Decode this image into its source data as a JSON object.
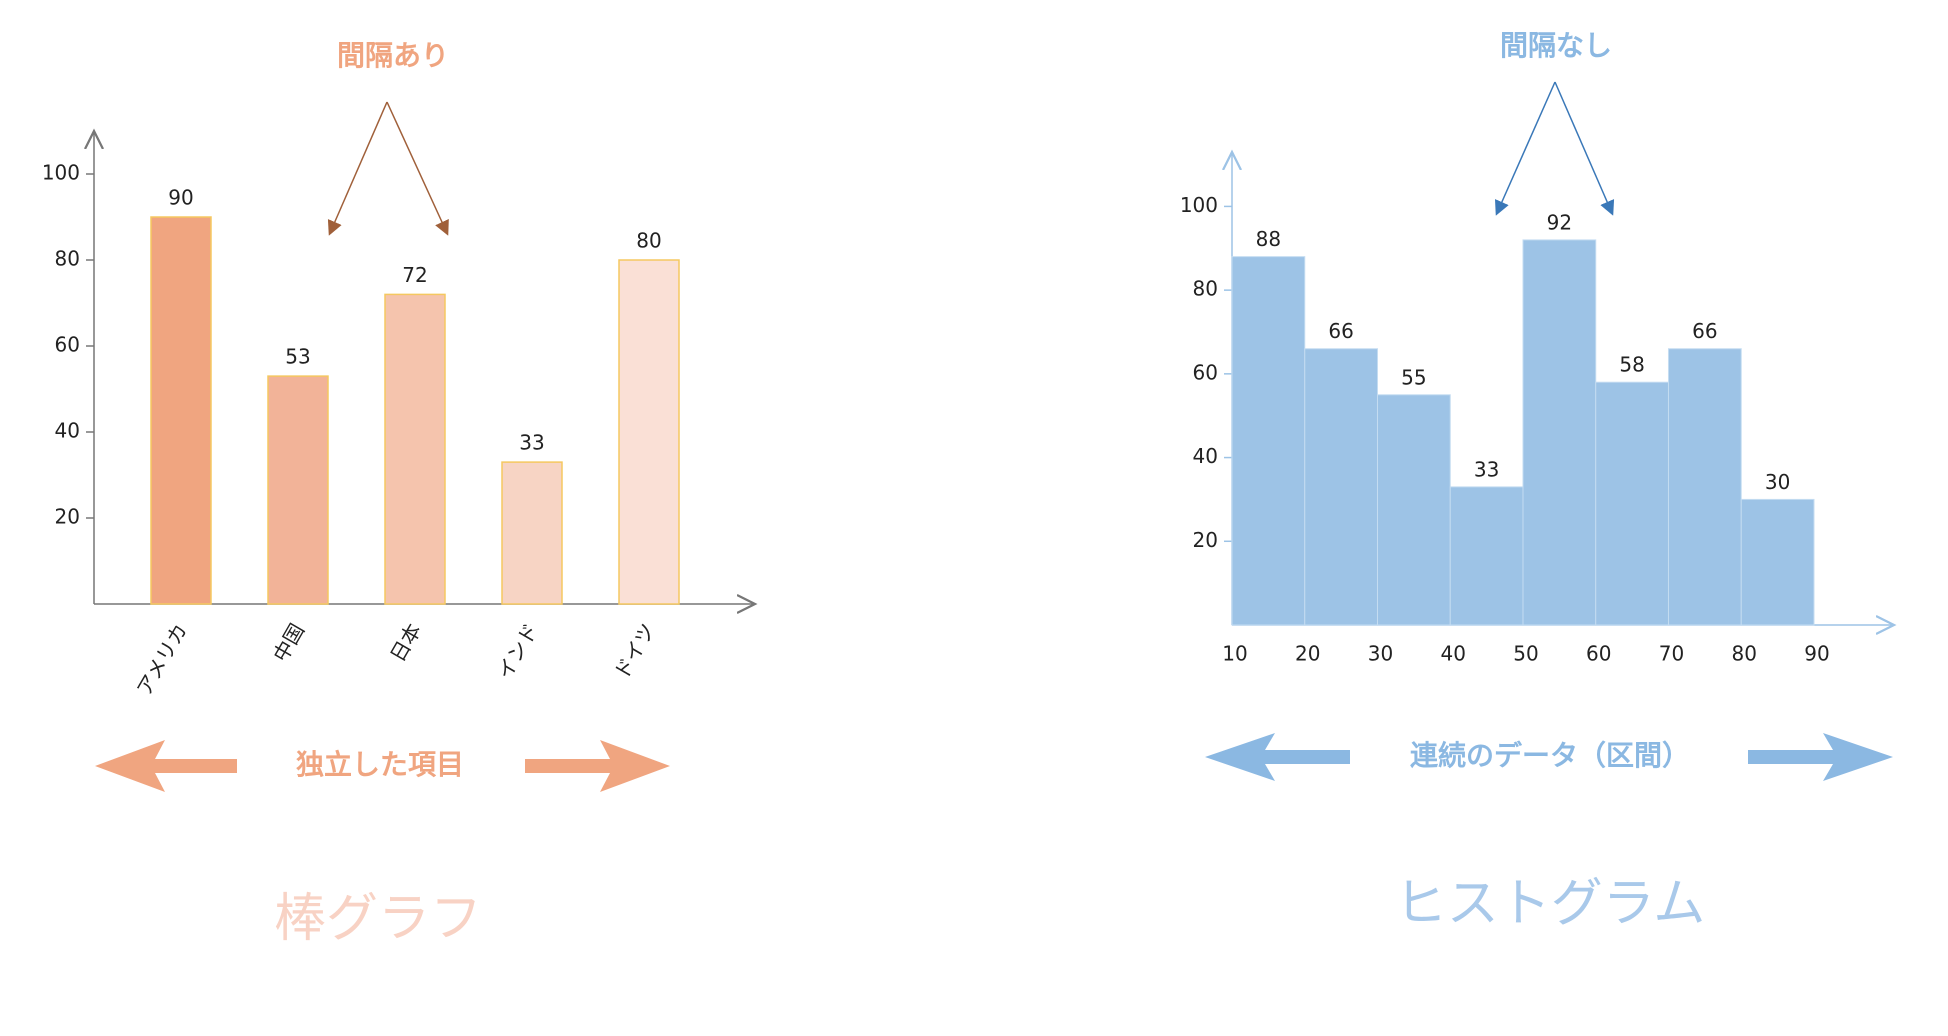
{
  "chart_data": [
    {
      "type": "bar",
      "title": "棒グラフ",
      "annotations": [
        "間隔あり",
        "独立した項目"
      ],
      "categories": [
        "アメリカ",
        "中国",
        "日本",
        "インド",
        "ドイツ"
      ],
      "values": [
        90,
        53,
        72,
        33,
        80
      ],
      "colors": [
        "#f0a580",
        "#f2b398",
        "#f5c4ad",
        "#f7d4c4",
        "#fae0d6"
      ],
      "ylim": [
        0,
        110
      ],
      "yticks": [
        20,
        40,
        60,
        80,
        100
      ],
      "accent": "#f0a580",
      "title_color": "#f8d2c4"
    },
    {
      "type": "histogram",
      "title": "ヒストグラム",
      "annotations": [
        "間隔なし",
        "連続のデータ（区間）"
      ],
      "bins": [
        10,
        20,
        30,
        40,
        50,
        60,
        70,
        80,
        90
      ],
      "values": [
        88,
        66,
        55,
        33,
        92,
        58,
        66,
        30
      ],
      "color": "#9dc3e6",
      "xlim": [
        10,
        101
      ],
      "xticks": [
        10,
        20,
        30,
        40,
        50,
        60,
        70,
        80,
        90
      ],
      "ylim": [
        0,
        113
      ],
      "yticks": [
        20,
        40,
        60,
        80,
        100
      ],
      "accent": "#8bb8e2",
      "title_color": "#a9c9ea"
    }
  ]
}
